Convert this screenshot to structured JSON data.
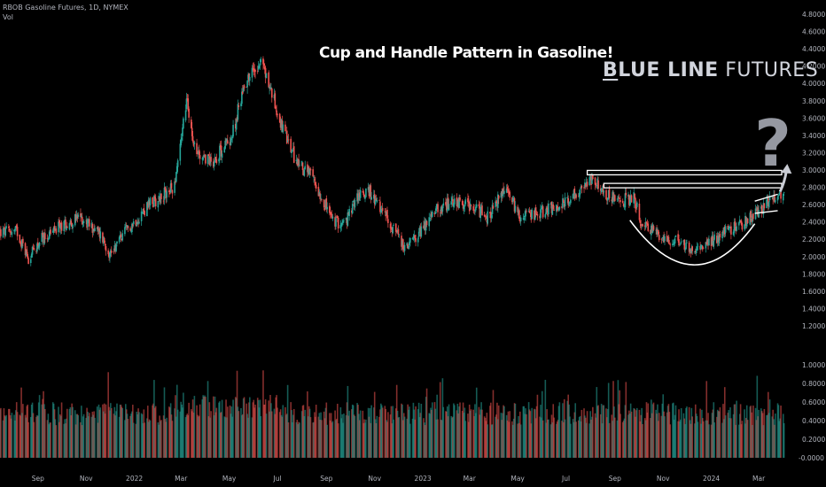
{
  "header": {
    "symbol_line": "RBOB Gasoline Futures, 1D, NYMEX",
    "volume_label": "Vol"
  },
  "annotations": {
    "title": "Cup and Handle Pattern in Gasoline!",
    "brand_part1": "B",
    "brand_part2": "LUE LINE",
    "brand_part3": " FUTURES",
    "question_mark": "?"
  },
  "colors": {
    "background": "#000000",
    "up": "#26a69a",
    "down": "#ef5350",
    "axis_text": "#b2b5be",
    "annotation": "#ffffff",
    "question": "#9598a1"
  },
  "chart_data": {
    "type": "candlestick",
    "title": "Cup and Handle Pattern in Gasoline!",
    "symbol": "RBOB Gasoline Futures, 1D, NYMEX",
    "price_axis": {
      "ticks": [
        "4.8000",
        "4.6000",
        "4.4000",
        "4.2000",
        "4.0000",
        "3.8000",
        "3.6000",
        "3.4000",
        "3.2000",
        "3.0000",
        "2.8000",
        "2.6000",
        "2.4000",
        "2.2000",
        "2.0000",
        "1.8000",
        "1.6000",
        "1.4000",
        "1.2000"
      ],
      "range": [
        1.2,
        4.8
      ]
    },
    "volume_axis": {
      "label": "Vol",
      "ticks": [
        "1.0000",
        "0.8000",
        "0.6000",
        "0.4000",
        "0.2000",
        "-0.0000"
      ],
      "range": [
        0,
        1.0
      ]
    },
    "time_axis": [
      "Sep",
      "Nov",
      "2022",
      "Mar",
      "May",
      "Jul",
      "Sep",
      "Nov",
      "2023",
      "Mar",
      "May",
      "Jul",
      "Sep",
      "Nov",
      "2024",
      "Mar"
    ],
    "price_path": [
      [
        "2021-07-15",
        2.28
      ],
      [
        "2021-08-05",
        2.3
      ],
      [
        "2021-08-20",
        1.98
      ],
      [
        "2021-09-05",
        2.2
      ],
      [
        "2021-10-01",
        2.36
      ],
      [
        "2021-10-25",
        2.45
      ],
      [
        "2021-11-20",
        2.25
      ],
      [
        "2021-12-01",
        2.03
      ],
      [
        "2021-12-20",
        2.28
      ],
      [
        "2022-01-20",
        2.6
      ],
      [
        "2022-02-20",
        2.8
      ],
      [
        "2022-03-08",
        3.8
      ],
      [
        "2022-03-20",
        3.2
      ],
      [
        "2022-04-10",
        3.1
      ],
      [
        "2022-05-05",
        3.4
      ],
      [
        "2022-05-20",
        4.0
      ],
      [
        "2022-06-10",
        4.28
      ],
      [
        "2022-06-25",
        3.85
      ],
      [
        "2022-07-10",
        3.4
      ],
      [
        "2022-07-25",
        3.1
      ],
      [
        "2022-08-15",
        2.9
      ],
      [
        "2022-09-10",
        2.4
      ],
      [
        "2022-09-25",
        2.38
      ],
      [
        "2022-10-10",
        2.7
      ],
      [
        "2022-10-25",
        2.75
      ],
      [
        "2022-11-20",
        2.4
      ],
      [
        "2022-12-10",
        2.08
      ],
      [
        "2022-12-25",
        2.25
      ],
      [
        "2023-01-20",
        2.55
      ],
      [
        "2023-02-10",
        2.65
      ],
      [
        "2023-03-10",
        2.55
      ],
      [
        "2023-03-25",
        2.45
      ],
      [
        "2023-04-15",
        2.8
      ],
      [
        "2023-05-05",
        2.45
      ],
      [
        "2023-06-01",
        2.52
      ],
      [
        "2023-06-25",
        2.6
      ],
      [
        "2023-07-20",
        2.78
      ],
      [
        "2023-08-05",
        2.88
      ],
      [
        "2023-08-20",
        2.72
      ],
      [
        "2023-09-10",
        2.65
      ],
      [
        "2023-09-25",
        2.68
      ],
      [
        "2023-10-05",
        2.38
      ],
      [
        "2023-10-20",
        2.3
      ],
      [
        "2023-11-05",
        2.2
      ],
      [
        "2023-11-20",
        2.18
      ],
      [
        "2023-12-05",
        2.1
      ],
      [
        "2023-12-20",
        2.12
      ],
      [
        "2024-01-05",
        2.2
      ],
      [
        "2024-01-20",
        2.3
      ],
      [
        "2024-02-05",
        2.35
      ],
      [
        "2024-02-20",
        2.45
      ],
      [
        "2024-03-05",
        2.55
      ],
      [
        "2024-03-20",
        2.68
      ],
      [
        "2024-03-30",
        2.75
      ]
    ],
    "resistance_levels": [
      2.97,
      2.82
    ],
    "cup": {
      "start": "2023-09-20",
      "bottom": "2023-12-10",
      "end": "2024-02-25",
      "bottom_price": 1.9,
      "rim_price": 2.4
    },
    "handle": {
      "start": "2024-02-25",
      "end": "2024-03-25",
      "upper": [
        2.64,
        2.72
      ],
      "lower": [
        2.5,
        2.53
      ]
    },
    "breakout_arrow": {
      "from": [
        "2024-03-28",
        2.75
      ],
      "to": [
        "2024-04-05",
        3.05
      ]
    }
  }
}
